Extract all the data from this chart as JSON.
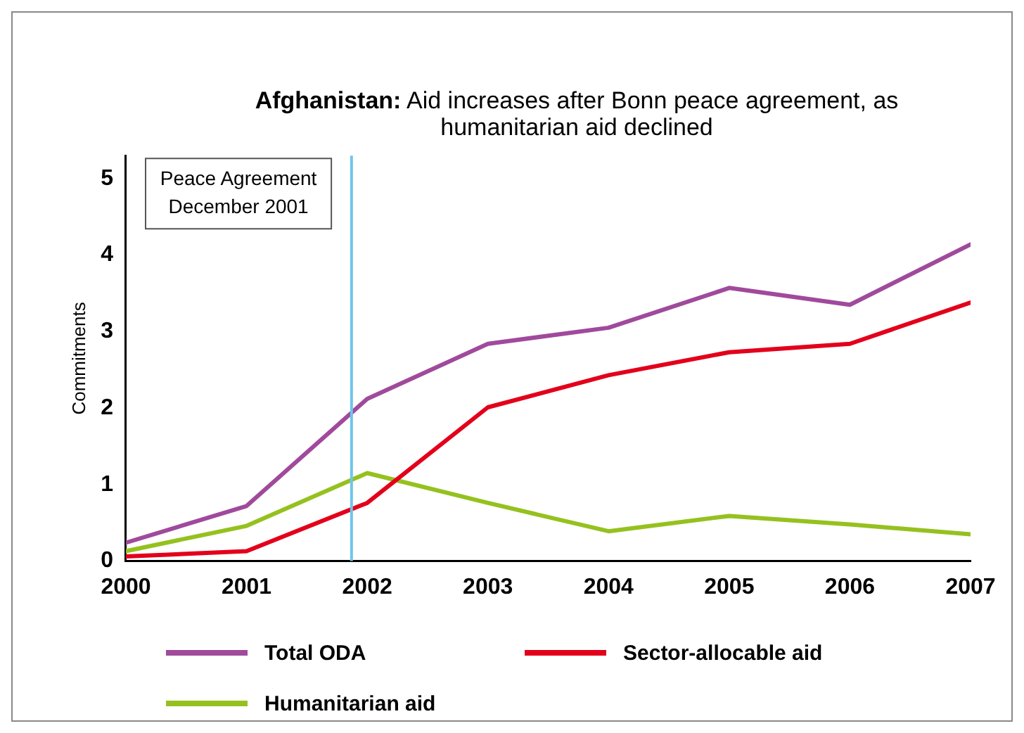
{
  "chart_data": {
    "type": "line",
    "title": "Afghanistan: Aid increases after Bonn peace agreement, as humanitarian aid declined",
    "ylabel": "Commitments",
    "x": [
      2000,
      2001,
      2002,
      2003,
      2004,
      2005,
      2006,
      2007
    ],
    "xlim": [
      2000,
      2007
    ],
    "xticks": [
      2000,
      2001,
      2002,
      2003,
      2004,
      2005,
      2006,
      2007
    ],
    "ylim": [
      0,
      5.3
    ],
    "yticks": [
      0,
      1,
      2,
      3,
      4,
      5
    ],
    "grid": false,
    "legend": "bottom",
    "marker": "none",
    "line_style": "solid",
    "ref_lines": [
      {
        "axis": "x",
        "value": 2001.87,
        "label": "Peace Agreement\nDecember 2001",
        "color": "#6ec6e8"
      }
    ],
    "series": [
      {
        "name": "Total ODA",
        "color": "#a04a9c",
        "values": [
          0.24,
          0.72,
          2.12,
          2.84,
          3.05,
          3.57,
          3.35,
          4.14
        ]
      },
      {
        "name": "Sector-allocable aid",
        "color": "#e3001b",
        "values": [
          0.06,
          0.13,
          0.76,
          2.01,
          2.43,
          2.73,
          2.84,
          3.38
        ]
      },
      {
        "name": "Humanitarian aid",
        "color": "#95c11f",
        "values": [
          0.13,
          0.46,
          1.15,
          0.76,
          0.39,
          0.59,
          0.48,
          0.35
        ]
      }
    ]
  }
}
